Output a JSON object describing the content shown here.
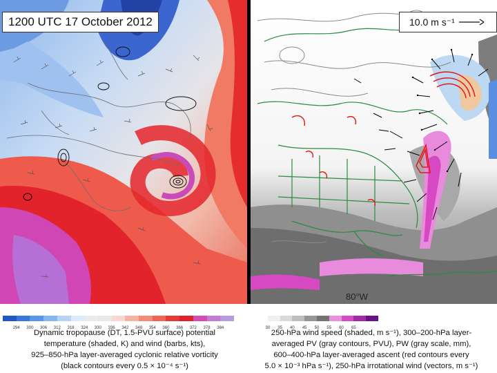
{
  "title": "1200 UTC 17 October 2012",
  "reference_vector": {
    "label": "10.0 m s⁻¹"
  },
  "longitude_label": "80°W",
  "left_colorbar": {
    "ticks": [
      "294",
      "300",
      "306",
      "312",
      "318",
      "324",
      "330",
      "336",
      "342",
      "348",
      "354",
      "360",
      "366",
      "372",
      "378",
      "384"
    ],
    "colors": [
      "#1f57c4",
      "#3a77dc",
      "#5a97e8",
      "#84b6f0",
      "#b3d4f7",
      "#dcecfb",
      "#e8ecef",
      "#e8e8e8",
      "#f7d7cf",
      "#f6b3a2",
      "#f28a74",
      "#ee6353",
      "#e23b35",
      "#e0202d",
      "#d44bb4",
      "#c779d6",
      "#b89be0"
    ]
  },
  "right_colorbar": {
    "ticks": [
      "30",
      "35",
      "40",
      "45",
      "50",
      "55",
      "60",
      "65"
    ],
    "colors": [
      "#ffffff",
      "#f0f0f0",
      "#d9d9d9",
      "#bdbdbd",
      "#969696",
      "#737373",
      "#ec8ee0",
      "#d94bc6",
      "#a22aa6",
      "#6a108a"
    ]
  },
  "left_caption": [
    "Dynamic tropopause (DT, 1.5-PVU surface) potential",
    "temperature (shaded, K) and wind (barbs, kts),",
    "925–850-hPa layer-averaged cyclonic relative vorticity",
    "(black contours every 0.5 × 10⁻⁴ s⁻¹)"
  ],
  "right_caption": [
    "250-hPa wind speed (shaded, m s⁻¹), 300–200-hPa layer-",
    "averaged PV (gray contours, PVU), PW (gray scale, mm),",
    "600–400-hPa layer-averaged ascent (red contours every",
    "5.0 × 10⁻³ hPa s⁻¹), 250-hPa irrotational wind (vectors, m s⁻¹)"
  ],
  "colors": {
    "cold_dt": "#2b55c8",
    "warm_dt": "#e32b2b",
    "very_warm_dt": "#cf4fc0",
    "coastline": "#2b8a3e",
    "ascent": "#e01919"
  }
}
